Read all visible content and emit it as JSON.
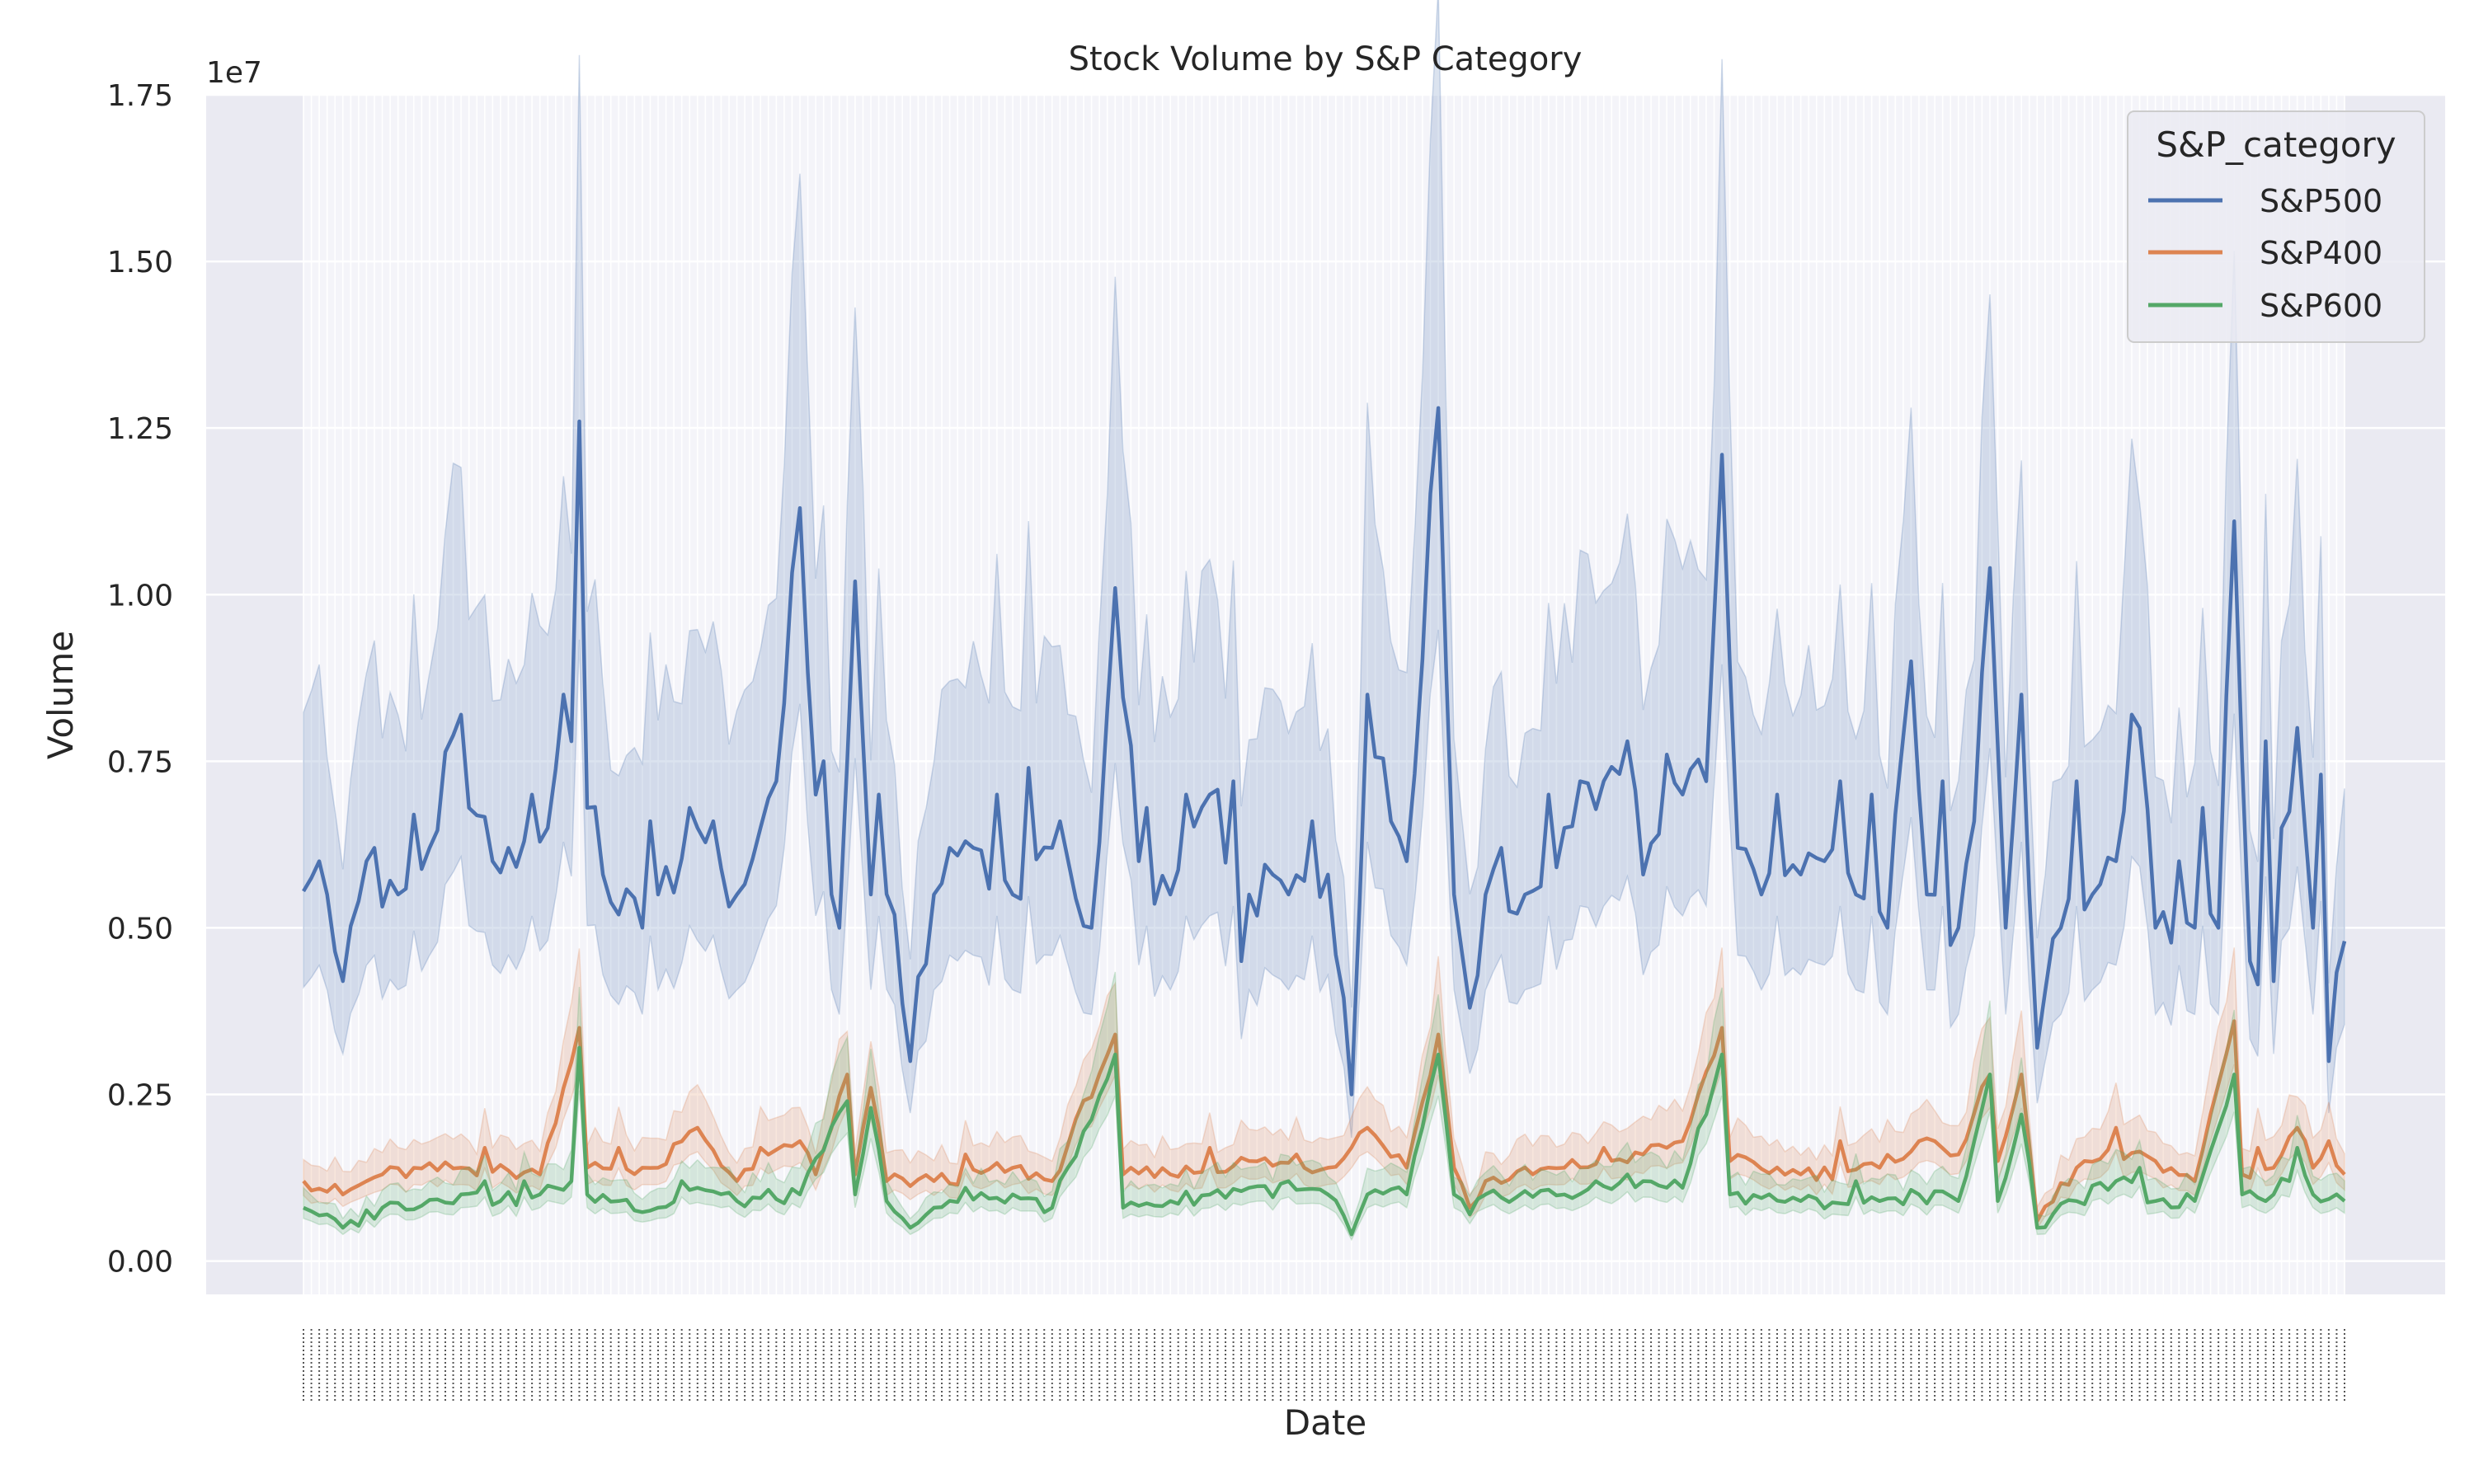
{
  "chart_data": {
    "type": "line",
    "title": "Stock Volume by S&P Category",
    "xlabel": "Date",
    "ylabel": "Volume",
    "y_offset_label": "1e7",
    "y_scale": 10000000,
    "ylim": [
      -0.05,
      1.75
    ],
    "yticks": [
      0.0,
      0.25,
      0.5,
      0.75,
      1.0,
      1.25,
      1.5,
      1.75
    ],
    "ytick_labels": [
      "0.00",
      "0.25",
      "0.50",
      "0.75",
      "1.00",
      "1.25",
      "1.50",
      "1.75"
    ],
    "grid": true,
    "legend": {
      "title": "S&P_category",
      "position": "top-right"
    },
    "x_count": 260,
    "series": [
      {
        "name": "S&P500",
        "color": "#4c72b0",
        "band_opacity": 0.2,
        "mean_knots": [
          [
            0,
            0.555
          ],
          [
            3,
            0.55
          ],
          [
            5,
            0.42
          ],
          [
            8,
            0.6
          ],
          [
            12,
            0.55
          ],
          [
            16,
            0.62
          ],
          [
            20,
            0.82
          ],
          [
            24,
            0.6
          ],
          [
            28,
            0.63
          ],
          [
            31,
            0.65
          ],
          [
            33,
            0.85
          ],
          [
            35,
            1.26
          ],
          [
            36,
            0.68
          ],
          [
            40,
            0.52
          ],
          [
            45,
            0.55
          ],
          [
            50,
            0.65
          ],
          [
            55,
            0.55
          ],
          [
            60,
            0.72
          ],
          [
            63,
            1.13
          ],
          [
            65,
            0.7
          ],
          [
            68,
            0.5
          ],
          [
            70,
            1.02
          ],
          [
            72,
            0.55
          ],
          [
            75,
            0.52
          ],
          [
            77,
            0.3
          ],
          [
            80,
            0.55
          ],
          [
            85,
            0.62
          ],
          [
            90,
            0.55
          ],
          [
            95,
            0.62
          ],
          [
            100,
            0.5
          ],
          [
            103,
            1.01
          ],
          [
            106,
            0.6
          ],
          [
            110,
            0.55
          ],
          [
            115,
            0.7
          ],
          [
            120,
            0.55
          ],
          [
            125,
            0.55
          ],
          [
            130,
            0.58
          ],
          [
            133,
            0.25
          ],
          [
            135,
            0.85
          ],
          [
            140,
            0.6
          ],
          [
            144,
            1.28
          ],
          [
            146,
            0.55
          ],
          [
            148,
            0.38
          ],
          [
            150,
            0.55
          ],
          [
            155,
            0.55
          ],
          [
            160,
            0.65
          ],
          [
            165,
            0.72
          ],
          [
            170,
            0.65
          ],
          [
            175,
            0.7
          ],
          [
            178,
            0.72
          ],
          [
            180,
            1.21
          ],
          [
            182,
            0.62
          ],
          [
            185,
            0.55
          ],
          [
            190,
            0.58
          ],
          [
            193,
            0.6
          ],
          [
            197,
            0.55
          ],
          [
            201,
            0.5
          ],
          [
            204,
            0.9
          ],
          [
            206,
            0.55
          ],
          [
            210,
            0.5
          ],
          [
            214,
            1.04
          ],
          [
            216,
            0.5
          ],
          [
            218,
            0.85
          ],
          [
            220,
            0.32
          ],
          [
            223,
            0.5
          ],
          [
            227,
            0.55
          ],
          [
            230,
            0.6
          ],
          [
            233,
            0.8
          ],
          [
            235,
            0.5
          ],
          [
            240,
            0.5
          ],
          [
            243,
            0.5
          ],
          [
            245,
            1.11
          ],
          [
            247,
            0.45
          ],
          [
            250,
            0.42
          ],
          [
            253,
            0.8
          ],
          [
            255,
            0.5
          ],
          [
            257,
            0.3
          ],
          [
            259,
            0.48
          ]
        ],
        "spikes": [
          [
            2,
            0.6
          ],
          [
            9,
            0.62
          ],
          [
            14,
            0.67
          ],
          [
            21,
            0.68
          ],
          [
            26,
            0.62
          ],
          [
            29,
            0.7
          ],
          [
            38,
            0.58
          ],
          [
            44,
            0.66
          ],
          [
            49,
            0.68
          ],
          [
            52,
            0.66
          ],
          [
            58,
            0.65
          ],
          [
            66,
            0.75
          ],
          [
            73,
            0.7
          ],
          [
            82,
            0.62
          ],
          [
            88,
            0.7
          ],
          [
            92,
            0.74
          ],
          [
            96,
            0.66
          ],
          [
            107,
            0.68
          ],
          [
            112,
            0.7
          ],
          [
            118,
            0.72
          ],
          [
            123,
            0.58
          ],
          [
            128,
            0.66
          ],
          [
            138,
            0.66
          ],
          [
            152,
            0.62
          ],
          [
            158,
            0.7
          ],
          [
            162,
            0.72
          ],
          [
            168,
            0.78
          ],
          [
            173,
            0.76
          ],
          [
            187,
            0.7
          ],
          [
            195,
            0.72
          ],
          [
            199,
            0.7
          ],
          [
            208,
            0.72
          ],
          [
            212,
            0.66
          ],
          [
            225,
            0.72
          ],
          [
            232,
            0.82
          ],
          [
            238,
            0.6
          ],
          [
            241,
            0.68
          ],
          [
            249,
            0.78
          ],
          [
            251,
            0.65
          ],
          [
            256,
            0.73
          ]
        ],
        "dips": [
          [
            34,
            0.78
          ],
          [
            67,
            0.55
          ],
          [
            119,
            0.45
          ],
          [
            170,
            0.58
          ]
        ],
        "band_lower_ratio": 0.74,
        "band_upper_ratio": 1.36
      },
      {
        "name": "S&P400",
        "color": "#dd8452",
        "band_opacity": 0.2,
        "mean_knots": [
          [
            0,
            0.12
          ],
          [
            5,
            0.1
          ],
          [
            10,
            0.13
          ],
          [
            20,
            0.14
          ],
          [
            30,
            0.13
          ],
          [
            35,
            0.35
          ],
          [
            36,
            0.14
          ],
          [
            45,
            0.14
          ],
          [
            50,
            0.2
          ],
          [
            55,
            0.12
          ],
          [
            63,
            0.18
          ],
          [
            65,
            0.13
          ],
          [
            69,
            0.28
          ],
          [
            70,
            0.13
          ],
          [
            72,
            0.26
          ],
          [
            74,
            0.12
          ],
          [
            80,
            0.12
          ],
          [
            90,
            0.14
          ],
          [
            95,
            0.12
          ],
          [
            103,
            0.34
          ],
          [
            104,
            0.13
          ],
          [
            110,
            0.13
          ],
          [
            120,
            0.15
          ],
          [
            130,
            0.14
          ],
          [
            135,
            0.2
          ],
          [
            140,
            0.14
          ],
          [
            144,
            0.34
          ],
          [
            146,
            0.14
          ],
          [
            148,
            0.08
          ],
          [
            150,
            0.12
          ],
          [
            160,
            0.14
          ],
          [
            170,
            0.16
          ],
          [
            175,
            0.18
          ],
          [
            180,
            0.35
          ],
          [
            181,
            0.15
          ],
          [
            190,
            0.13
          ],
          [
            200,
            0.14
          ],
          [
            205,
            0.18
          ],
          [
            210,
            0.16
          ],
          [
            214,
            0.28
          ],
          [
            215,
            0.15
          ],
          [
            218,
            0.28
          ],
          [
            220,
            0.06
          ],
          [
            225,
            0.14
          ],
          [
            230,
            0.16
          ],
          [
            235,
            0.15
          ],
          [
            240,
            0.12
          ],
          [
            245,
            0.36
          ],
          [
            246,
            0.13
          ],
          [
            250,
            0.14
          ],
          [
            253,
            0.2
          ],
          [
            255,
            0.14
          ],
          [
            257,
            0.18
          ],
          [
            259,
            0.13
          ]
        ],
        "spikes": [
          [
            23,
            0.17
          ],
          [
            40,
            0.17
          ],
          [
            58,
            0.17
          ],
          [
            84,
            0.16
          ],
          [
            115,
            0.17
          ],
          [
            126,
            0.16
          ],
          [
            165,
            0.17
          ],
          [
            195,
            0.18
          ],
          [
            207,
            0.18
          ],
          [
            230,
            0.2
          ],
          [
            248,
            0.17
          ]
        ],
        "dips": [],
        "band_lower_ratio": 0.82,
        "band_upper_ratio": 1.22
      },
      {
        "name": "S&P600",
        "color": "#55a868",
        "band_opacity": 0.2,
        "mean_knots": [
          [
            0,
            0.08
          ],
          [
            3,
            0.07
          ],
          [
            5,
            0.05
          ],
          [
            10,
            0.08
          ],
          [
            20,
            0.1
          ],
          [
            25,
            0.09
          ],
          [
            30,
            0.1
          ],
          [
            34,
            0.12
          ],
          [
            35,
            0.32
          ],
          [
            36,
            0.1
          ],
          [
            40,
            0.09
          ],
          [
            45,
            0.08
          ],
          [
            50,
            0.11
          ],
          [
            55,
            0.09
          ],
          [
            63,
            0.1
          ],
          [
            69,
            0.24
          ],
          [
            70,
            0.1
          ],
          [
            72,
            0.23
          ],
          [
            74,
            0.09
          ],
          [
            77,
            0.05
          ],
          [
            80,
            0.08
          ],
          [
            90,
            0.1
          ],
          [
            95,
            0.08
          ],
          [
            103,
            0.31
          ],
          [
            104,
            0.08
          ],
          [
            110,
            0.09
          ],
          [
            120,
            0.11
          ],
          [
            130,
            0.1
          ],
          [
            133,
            0.04
          ],
          [
            135,
            0.1
          ],
          [
            140,
            0.1
          ],
          [
            144,
            0.31
          ],
          [
            146,
            0.1
          ],
          [
            148,
            0.07
          ],
          [
            150,
            0.1
          ],
          [
            160,
            0.1
          ],
          [
            170,
            0.12
          ],
          [
            175,
            0.11
          ],
          [
            180,
            0.31
          ],
          [
            181,
            0.1
          ],
          [
            190,
            0.09
          ],
          [
            200,
            0.09
          ],
          [
            205,
            0.1
          ],
          [
            210,
            0.09
          ],
          [
            214,
            0.28
          ],
          [
            215,
            0.09
          ],
          [
            218,
            0.22
          ],
          [
            220,
            0.05
          ],
          [
            225,
            0.09
          ],
          [
            230,
            0.12
          ],
          [
            235,
            0.09
          ],
          [
            240,
            0.09
          ],
          [
            245,
            0.28
          ],
          [
            246,
            0.1
          ],
          [
            250,
            0.1
          ],
          [
            253,
            0.17
          ],
          [
            255,
            0.1
          ],
          [
            259,
            0.09
          ]
        ],
        "spikes": [
          [
            23,
            0.12
          ],
          [
            28,
            0.12
          ],
          [
            48,
            0.12
          ],
          [
            84,
            0.11
          ],
          [
            125,
            0.12
          ],
          [
            168,
            0.13
          ],
          [
            197,
            0.12
          ],
          [
            233,
            0.14
          ],
          [
            252,
            0.12
          ]
        ],
        "dips": [],
        "band_lower_ratio": 0.8,
        "band_upper_ratio": 1.25
      }
    ]
  }
}
